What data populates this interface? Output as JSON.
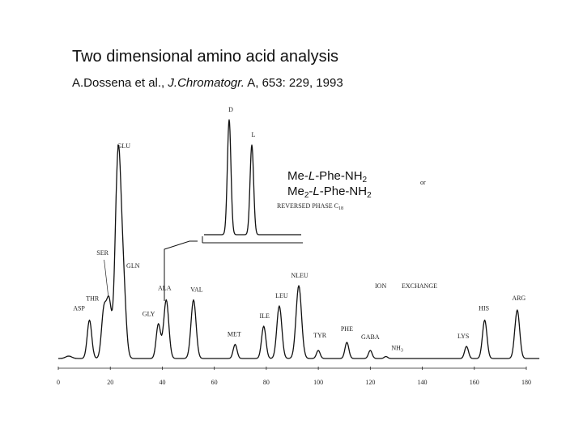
{
  "slide": {
    "title": "Two dimensional amino acid analysis",
    "citation_authors": "A.Dossena et al., ",
    "citation_journal": "J.Chromatogr.",
    "citation_rest": " A, 653: 229, 1993"
  },
  "chart_data": [
    {
      "type": "line",
      "title": "",
      "xlabel": "",
      "ylabel": "",
      "xlim": [
        0,
        180
      ],
      "xticks": [
        "0",
        "20",
        "40",
        "60",
        "80",
        "100",
        "120",
        "140",
        "160",
        "180"
      ],
      "grid": false,
      "annotations": [
        "ION",
        "EXCHANGE"
      ],
      "peaks": [
        {
          "label": "ASP",
          "x": 12,
          "height": 0.19
        },
        {
          "label": "THR",
          "x": 17.5,
          "height": 0.23
        },
        {
          "label": "SER",
          "x": 19.5,
          "height": 0.28
        },
        {
          "label": "GLU",
          "x": 23,
          "height": 1.0
        },
        {
          "label": "GLN",
          "x": 25,
          "height": 0.34
        },
        {
          "label": "GLY",
          "x": 38.5,
          "height": 0.17
        },
        {
          "label": "ALA",
          "x": 41.5,
          "height": 0.29
        },
        {
          "label": "VAL",
          "x": 52,
          "height": 0.29
        },
        {
          "label": "MET",
          "x": 68,
          "height": 0.07
        },
        {
          "label": "ILE",
          "x": 79,
          "height": 0.16
        },
        {
          "label": "LEU",
          "x": 85,
          "height": 0.26
        },
        {
          "label": "NLEU",
          "x": 92.5,
          "height": 0.36
        },
        {
          "label": "TYR",
          "x": 100,
          "height": 0.04
        },
        {
          "label": "PHE",
          "x": 111,
          "height": 0.08
        },
        {
          "label": "GABA",
          "x": 120,
          "height": 0.04
        },
        {
          "label": "NH3",
          "x": 126,
          "height": 0.01
        },
        {
          "label": "LYS",
          "x": 157,
          "height": 0.06
        },
        {
          "label": "HIS",
          "x": 164,
          "height": 0.19
        },
        {
          "label": "ARG",
          "x": 176.5,
          "height": 0.24
        }
      ]
    },
    {
      "type": "line",
      "title": "",
      "inset": true,
      "reagent_line1": "Me-L-Phe-NH2",
      "reagent_line2": "Me2-L-Phe-NH2",
      "reagent_or": "or",
      "phase_label": "REVERSED PHASE C18",
      "peaks": [
        {
          "label": "D",
          "height": 1.0
        },
        {
          "label": "L",
          "height": 0.78
        }
      ]
    }
  ]
}
